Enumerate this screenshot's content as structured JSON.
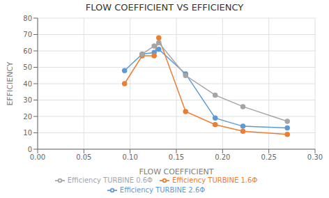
{
  "chart_data": {
    "type": "line",
    "title": "FLOW COEFFICIENT  VS EFFICIENCY",
    "xlabel": "FLOW COEFFICIENT",
    "ylabel": "EFFICIENCY",
    "xlim": [
      0,
      0.3
    ],
    "ylim": [
      0,
      80
    ],
    "xticks": [
      {
        "value": 0,
        "label": "0.00"
      },
      0.05,
      {
        "value": 0.1,
        "label": "0.10"
      },
      0.15,
      {
        "value": 0.2,
        "label": "0.20"
      },
      0.25,
      {
        "value": 0.3,
        "label": "0.30"
      }
    ],
    "yticks": [
      0,
      10,
      20,
      30,
      40,
      50,
      60,
      70,
      80
    ],
    "grid": true,
    "legend": "bottom",
    "marker": "circle",
    "series": [
      {
        "name": "Efficiency TURBINE 2.6Φ",
        "color": "#5B9BD5",
        "x": [
          0.094,
          0.113,
          0.126,
          0.131,
          0.16,
          0.192,
          0.222,
          0.27
        ],
        "values": [
          48,
          58,
          59,
          61,
          46,
          19,
          14,
          13
        ]
      },
      {
        "name": "Efficiency TURBINE 1.6Φ",
        "color": "#ED7D31",
        "x": [
          0.094,
          0.113,
          0.126,
          0.131,
          0.16,
          0.192,
          0.222,
          0.27
        ],
        "values": [
          40,
          57,
          57,
          68,
          23,
          15,
          11,
          9
        ]
      },
      {
        "name": "Efficiency TURBINE 0.6Φ",
        "color": "#A5A5A5",
        "x": [
          0.113,
          0.126,
          0.131,
          0.16,
          0.192,
          0.222,
          0.27
        ],
        "values": [
          58,
          63,
          65,
          45,
          33,
          26,
          17
        ]
      }
    ]
  }
}
